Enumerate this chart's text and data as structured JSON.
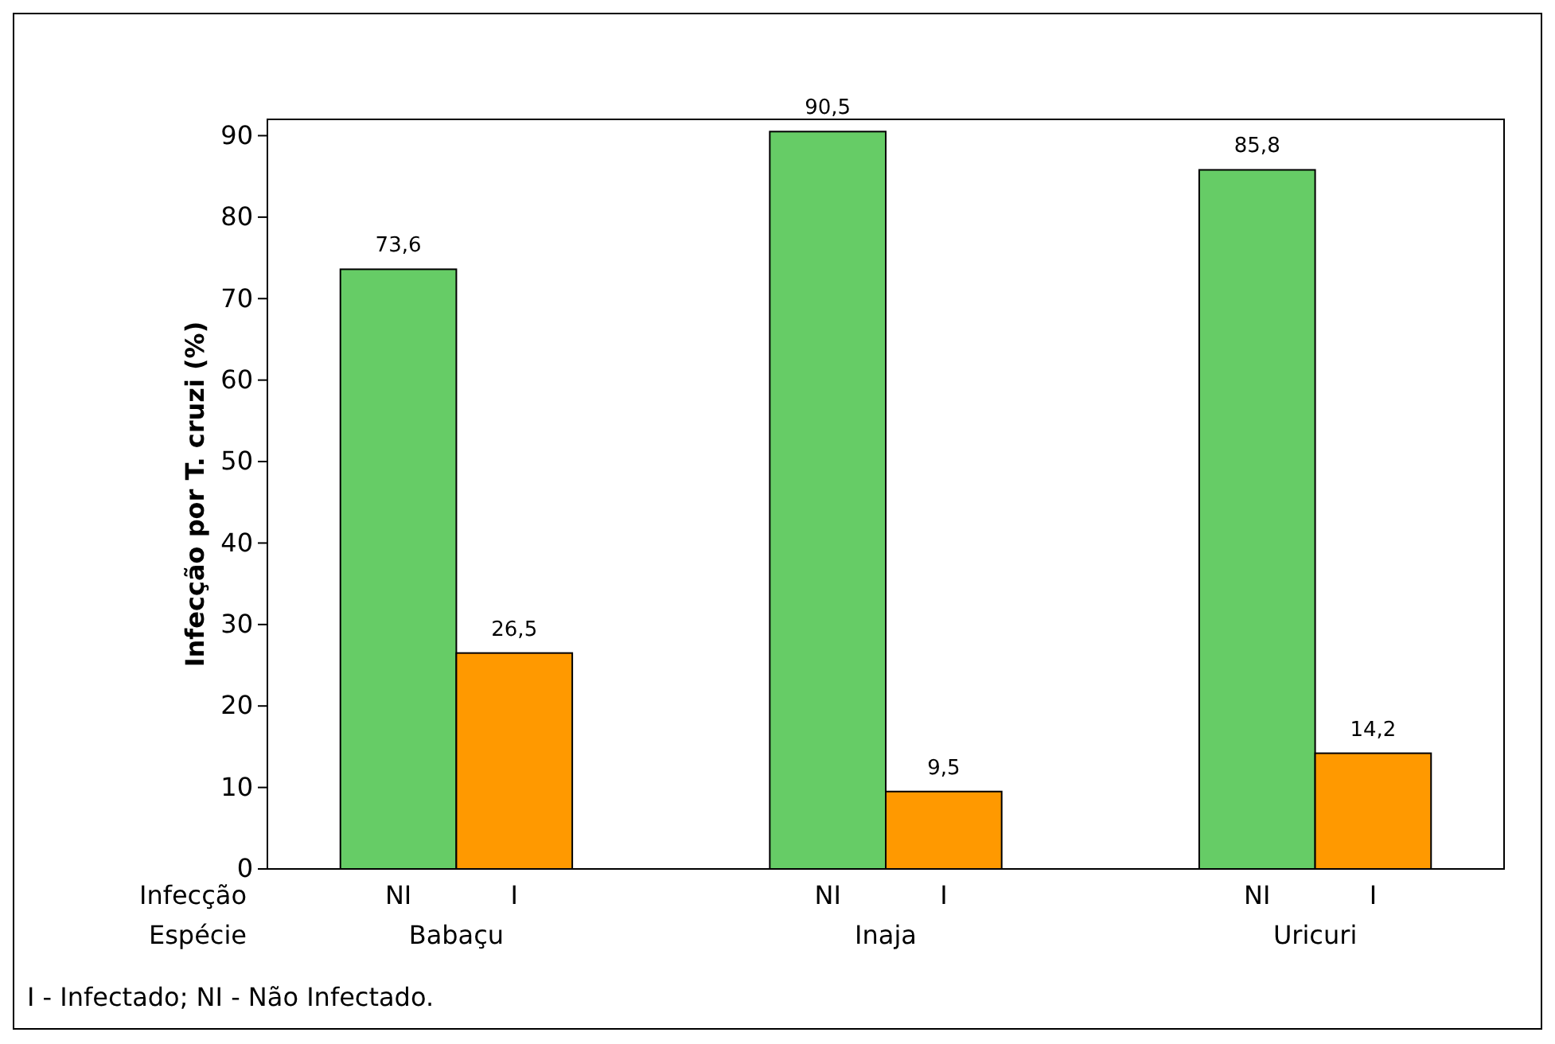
{
  "chart_data": {
    "type": "bar",
    "categories": [
      "Babaçu",
      "Inaja",
      "Uricuri"
    ],
    "series": [
      {
        "name": "NI",
        "color": "#66cc66",
        "values": [
          73.6,
          90.5,
          85.8
        ],
        "value_labels": [
          "73,6",
          "90,5",
          "85,8"
        ]
      },
      {
        "name": "I",
        "color": "#ff9900",
        "values": [
          26.5,
          9.5,
          14.2
        ],
        "value_labels": [
          "26,5",
          "9,5",
          "14,2"
        ]
      }
    ],
    "ylabel": "Infecção por T. cruzi (%)",
    "ylim": [
      0,
      92
    ],
    "yticks": [
      0,
      10,
      20,
      30,
      40,
      50,
      60,
      70,
      80,
      90
    ],
    "annotations": [
      "Infecção",
      "Espécie",
      "I - Infectado;   NI - Não Infectado."
    ],
    "grid": false
  }
}
